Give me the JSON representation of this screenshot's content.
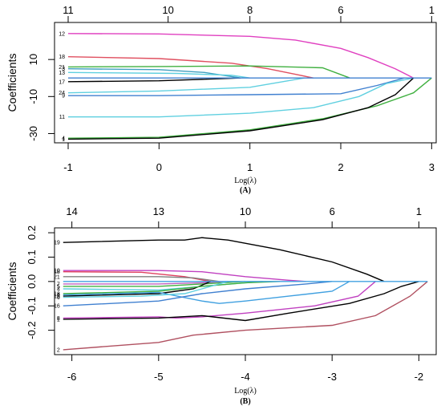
{
  "chart_data": [
    {
      "type": "line",
      "panel_label": "(A)",
      "xlabel": "Log(λ)",
      "ylabel": "Coefficients",
      "xlim": [
        -1.15,
        3.05
      ],
      "ylim": [
        -35,
        30
      ],
      "x_ticks": [
        -1,
        0,
        1,
        2,
        3
      ],
      "x_tick_labels": [
        "-1",
        "0",
        "1",
        "2",
        "3"
      ],
      "y_ticks": [
        10,
        -10,
        -30
      ],
      "y_tick_labels": [
        "10",
        "-10",
        "-30"
      ],
      "top_ticks": [
        -1,
        0.1,
        1.0,
        2.0,
        3.0
      ],
      "top_tick_labels": [
        "11",
        "10",
        "8",
        "6",
        "1"
      ],
      "grid": false,
      "series": [
        {
          "name": "12",
          "color": "#e040c0",
          "points": [
            [
              -1.0,
              24
            ],
            [
              0.0,
              23.8
            ],
            [
              1.0,
              22.5
            ],
            [
              1.5,
              20.5
            ],
            [
              2.0,
              16
            ],
            [
              2.3,
              11
            ],
            [
              2.6,
              5
            ],
            [
              2.8,
              0
            ]
          ]
        },
        {
          "name": "18",
          "color": "#e05060",
          "points": [
            [
              -1.0,
              11.5
            ],
            [
              0.0,
              10.5
            ],
            [
              0.8,
              8.0
            ],
            [
              1.2,
              5.0
            ],
            [
              1.5,
              2.0
            ],
            [
              1.7,
              0
            ]
          ]
        },
        {
          "name": "21",
          "color": "#40b040",
          "points": [
            [
              -1.0,
              6
            ],
            [
              0.0,
              6.2
            ],
            [
              1.0,
              6.5
            ],
            [
              1.8,
              5.5
            ],
            [
              2.1,
              0
            ]
          ]
        },
        {
          "name": "3",
          "color": "#40a0c0",
          "points": [
            [
              -1.0,
              5
            ],
            [
              0.0,
              4.5
            ],
            [
              0.5,
              3.0
            ],
            [
              0.9,
              0
            ]
          ]
        },
        {
          "name": "13",
          "color": "#60d0e0",
          "points": [
            [
              -1.0,
              3
            ],
            [
              0.2,
              2.5
            ],
            [
              0.8,
              1.5
            ],
            [
              1.0,
              0
            ]
          ]
        },
        {
          "name": "17",
          "color": "#000000",
          "points": [
            [
              -1.0,
              -2
            ],
            [
              0.0,
              -1.5
            ],
            [
              0.9,
              0
            ]
          ]
        },
        {
          "name": "24",
          "color": "#60d0e0",
          "points": [
            [
              -1.0,
              -8
            ],
            [
              0.0,
              -7
            ],
            [
              1.0,
              -5
            ],
            [
              1.6,
              0
            ]
          ]
        },
        {
          "name": "9",
          "color": "#4080d0",
          "points": [
            [
              -1.0,
              -9.5
            ],
            [
              0.0,
              -9.5
            ],
            [
              1.0,
              -9
            ],
            [
              2.0,
              -8.5
            ],
            [
              2.4,
              -4
            ],
            [
              2.7,
              0
            ]
          ]
        },
        {
          "name": "11",
          "color": "#60d0e0",
          "points": [
            [
              -1.0,
              -21
            ],
            [
              0.0,
              -21
            ],
            [
              1.0,
              -19
            ],
            [
              1.7,
              -16
            ],
            [
              2.2,
              -10
            ],
            [
              2.5,
              -3
            ],
            [
              2.8,
              0
            ]
          ]
        },
        {
          "name": "4",
          "color": "#40b040",
          "points": [
            [
              -1.0,
              -32.5
            ],
            [
              0.0,
              -32
            ],
            [
              1.0,
              -28
            ],
            [
              1.8,
              -22
            ],
            [
              2.4,
              -15
            ],
            [
              2.8,
              -8
            ],
            [
              3.0,
              0
            ]
          ]
        },
        {
          "name": "1",
          "color": "#000000",
          "points": [
            [
              -1.0,
              -33
            ],
            [
              0.0,
              -32.5
            ],
            [
              1.0,
              -28.5
            ],
            [
              1.8,
              -22.5
            ],
            [
              2.3,
              -16
            ],
            [
              2.6,
              -9
            ],
            [
              2.8,
              0
            ]
          ]
        },
        {
          "name": "",
          "color": "#4080d0",
          "points": [
            [
              -1.0,
              0
            ],
            [
              3.0,
              0
            ]
          ]
        }
      ]
    },
    {
      "type": "line",
      "panel_label": "(B)",
      "xlabel": "Log(λ)",
      "ylabel": "Coefficients",
      "xlim": [
        -6.2,
        -1.8
      ],
      "ylim": [
        -0.3,
        0.22
      ],
      "x_ticks": [
        -6,
        -5,
        -4,
        -3,
        -2
      ],
      "x_tick_labels": [
        "-6",
        "-5",
        "-4",
        "-3",
        "-2"
      ],
      "y_ticks": [
        0.2,
        0.1,
        0.0,
        -0.1,
        -0.2
      ],
      "y_tick_labels": [
        "0.2",
        "0.1",
        "0.0",
        "-0.1",
        "-0.2"
      ],
      "top_ticks": [
        -6.0,
        -5.0,
        -4.0,
        -3.0,
        -2.0
      ],
      "top_tick_labels": [
        "14",
        "13",
        "10",
        "6",
        "1"
      ],
      "grid": false,
      "series": [
        {
          "name": "19",
          "color": "#000000",
          "points": [
            [
              -6.1,
              0.16
            ],
            [
              -5.0,
              0.17
            ],
            [
              -4.7,
              0.17
            ],
            [
              -4.5,
              0.18
            ],
            [
              -4.2,
              0.17
            ],
            [
              -3.6,
              0.13
            ],
            [
              -3.0,
              0.08
            ],
            [
              -2.6,
              0.03
            ],
            [
              -2.4,
              0
            ]
          ]
        },
        {
          "name": "10",
          "color": "#c040c0",
          "points": [
            [
              -6.1,
              0.045
            ],
            [
              -5.0,
              0.045
            ],
            [
              -4.5,
              0.04
            ],
            [
              -4.0,
              0.02
            ],
            [
              -3.5,
              0.005
            ],
            [
              -3.3,
              0
            ]
          ]
        },
        {
          "name": "18",
          "color": "#e04060",
          "points": [
            [
              -6.1,
              0.04
            ],
            [
              -5.2,
              0.038
            ],
            [
              -4.7,
              0.02
            ],
            [
              -4.4,
              0
            ]
          ]
        },
        {
          "name": "21",
          "color": "#808080",
          "points": [
            [
              -6.1,
              0.02
            ],
            [
              -5.0,
              0.02
            ],
            [
              -4.6,
              0.015
            ],
            [
              -4.3,
              0
            ]
          ]
        },
        {
          "name": "7",
          "color": "#c060c0",
          "points": [
            [
              -6.1,
              -0.01
            ],
            [
              -5.0,
              -0.01
            ],
            [
              -4.5,
              -0.005
            ],
            [
              -4.2,
              0
            ]
          ]
        },
        {
          "name": "5",
          "color": "#40b040",
          "points": [
            [
              -6.1,
              -0.02
            ],
            [
              -5.0,
              -0.02
            ],
            [
              -4.5,
              -0.01
            ],
            [
              -4.0,
              0
            ]
          ]
        },
        {
          "name": "4",
          "color": "#60d0e0",
          "points": [
            [
              -6.1,
              -0.03
            ],
            [
              -5.0,
              -0.035
            ],
            [
              -4.5,
              -0.02
            ],
            [
              -3.8,
              0
            ]
          ]
        },
        {
          "name": "15",
          "color": "#000000",
          "points": [
            [
              -6.1,
              -0.06
            ],
            [
              -5.0,
              -0.05
            ],
            [
              -4.6,
              -0.03
            ],
            [
              -4.4,
              0
            ]
          ]
        },
        {
          "name": "13",
          "color": "#40b040",
          "points": [
            [
              -6.1,
              -0.05
            ],
            [
              -5.0,
              -0.04
            ],
            [
              -4.5,
              -0.02
            ],
            [
              -4.0,
              -0.005
            ],
            [
              -3.6,
              0
            ]
          ]
        },
        {
          "name": "9",
          "color": "#40a0e0",
          "points": [
            [
              -6.1,
              -0.055
            ],
            [
              -5.0,
              -0.045
            ],
            [
              -4.5,
              -0.08
            ],
            [
              -4.3,
              -0.09
            ],
            [
              -4.0,
              -0.08
            ],
            [
              -3.5,
              -0.06
            ],
            [
              -3.0,
              -0.04
            ],
            [
              -2.8,
              0
            ]
          ]
        },
        {
          "name": "6",
          "color": "#60d0e0",
          "points": [
            [
              -6.1,
              -0.065
            ],
            [
              -5.2,
              -0.06
            ],
            [
              -4.7,
              -0.05
            ],
            [
              -4.5,
              -0.03
            ],
            [
              -4.2,
              0
            ]
          ]
        },
        {
          "name": "16",
          "color": "#4080d0",
          "points": [
            [
              -6.1,
              -0.1
            ],
            [
              -5.0,
              -0.08
            ],
            [
              -4.5,
              -0.05
            ],
            [
              -4.0,
              -0.03
            ],
            [
              -3.3,
              -0.01
            ],
            [
              -3.0,
              0
            ]
          ]
        },
        {
          "name": "8",
          "color": "#c040c0",
          "points": [
            [
              -6.1,
              -0.15
            ],
            [
              -5.0,
              -0.145
            ],
            [
              -4.8,
              -0.15
            ],
            [
              -4.5,
              -0.145
            ],
            [
              -4.0,
              -0.13
            ],
            [
              -3.2,
              -0.1
            ],
            [
              -2.7,
              -0.06
            ],
            [
              -2.5,
              0
            ]
          ]
        },
        {
          "name": "1",
          "color": "#000000",
          "points": [
            [
              -6.1,
              -0.155
            ],
            [
              -5.0,
              -0.15
            ],
            [
              -4.5,
              -0.14
            ],
            [
              -4.0,
              -0.16
            ],
            [
              -3.5,
              -0.13
            ],
            [
              -2.8,
              -0.09
            ],
            [
              -2.4,
              -0.05
            ],
            [
              -2.2,
              -0.02
            ],
            [
              -2.0,
              0
            ]
          ]
        },
        {
          "name": "2",
          "color": "#b05060",
          "points": [
            [
              -6.1,
              -0.28
            ],
            [
              -5.0,
              -0.25
            ],
            [
              -4.6,
              -0.22
            ],
            [
              -4.0,
              -0.2
            ],
            [
              -3.0,
              -0.18
            ],
            [
              -2.5,
              -0.14
            ],
            [
              -2.1,
              -0.06
            ],
            [
              -1.9,
              0
            ]
          ]
        },
        {
          "name": "",
          "color": "#40a0e0",
          "points": [
            [
              -6.1,
              0
            ],
            [
              -1.9,
              0
            ]
          ]
        }
      ]
    }
  ]
}
